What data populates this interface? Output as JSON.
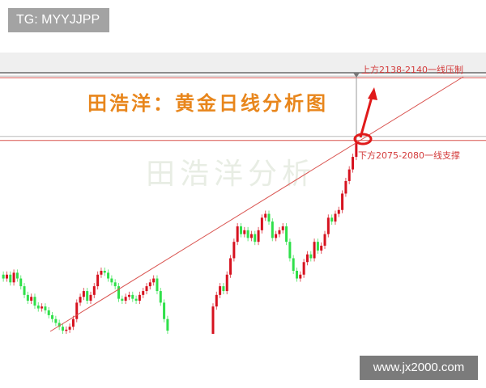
{
  "watermark_top": "TG: MYYJJPP",
  "watermark_bottom": "www.jx2000.com",
  "chart_data": {
    "type": "candlestick",
    "title": "田浩洋：黄金日线分析图",
    "background_watermark": "田浩洋分析",
    "annotations": {
      "resistance": {
        "label": "上方2138-2140一线压制",
        "range": [
          2138,
          2140
        ]
      },
      "support": {
        "label": "下方2075-2080一线支撑",
        "range": [
          2075,
          2080
        ]
      }
    },
    "colors": {
      "up": "#d6121f",
      "down": "#2fe04a",
      "lines": "#d9534f",
      "title": "#e8861c"
    },
    "ylim": [
      1873,
      2146
    ],
    "grid": false,
    "segment1_open": 1936,
    "segment1_closes": [
      1932,
      1936,
      1928,
      1938,
      1932,
      1924,
      1915,
      1909,
      1913,
      1904,
      1901,
      1903,
      1899,
      1894,
      1890,
      1886,
      1882,
      1878,
      1879,
      1882,
      1890,
      1907,
      1913,
      1919,
      1909,
      1915,
      1924,
      1936,
      1940,
      1938,
      1932,
      1928,
      1924,
      1911,
      1909,
      1913,
      1915,
      1911,
      1909,
      1915,
      1919,
      1924,
      1928,
      1932,
      1919,
      1907,
      1890,
      1878
    ],
    "gap_bars": 12,
    "segment2_open": 1873,
    "segment2_closes": [
      1903,
      1915,
      1924,
      1919,
      1936,
      1953,
      1970,
      1986,
      1978,
      1982,
      1974,
      1978,
      1970,
      1982,
      1995,
      1999,
      1991,
      1974,
      1978,
      1982,
      1986,
      1970,
      1953,
      1940,
      1932,
      1936,
      1949,
      1957,
      1953,
      1970,
      1961,
      1966,
      1978,
      1995,
      1991,
      1999,
      2003,
      2020,
      2033,
      2045,
      2058,
      2074
    ]
  }
}
